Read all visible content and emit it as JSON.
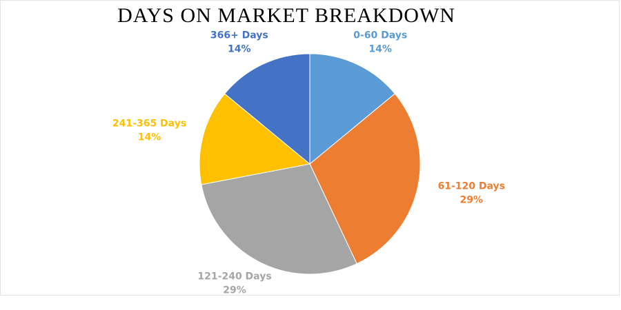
{
  "chart_data": {
    "type": "pie",
    "title": "DAYS ON MARKET BREAKDOWN",
    "categories": [
      "0-60 Days",
      "61-120 Days",
      "121-240 Days",
      "241-365 Days",
      "366+ Days"
    ],
    "values": [
      14,
      29,
      29,
      14,
      14
    ],
    "value_labels": [
      "14%",
      "29%",
      "29%",
      "14%",
      "14%"
    ],
    "colors": [
      "#5b9bd5",
      "#ed7d31",
      "#a5a5a5",
      "#ffc000",
      "#4472c4"
    ]
  }
}
